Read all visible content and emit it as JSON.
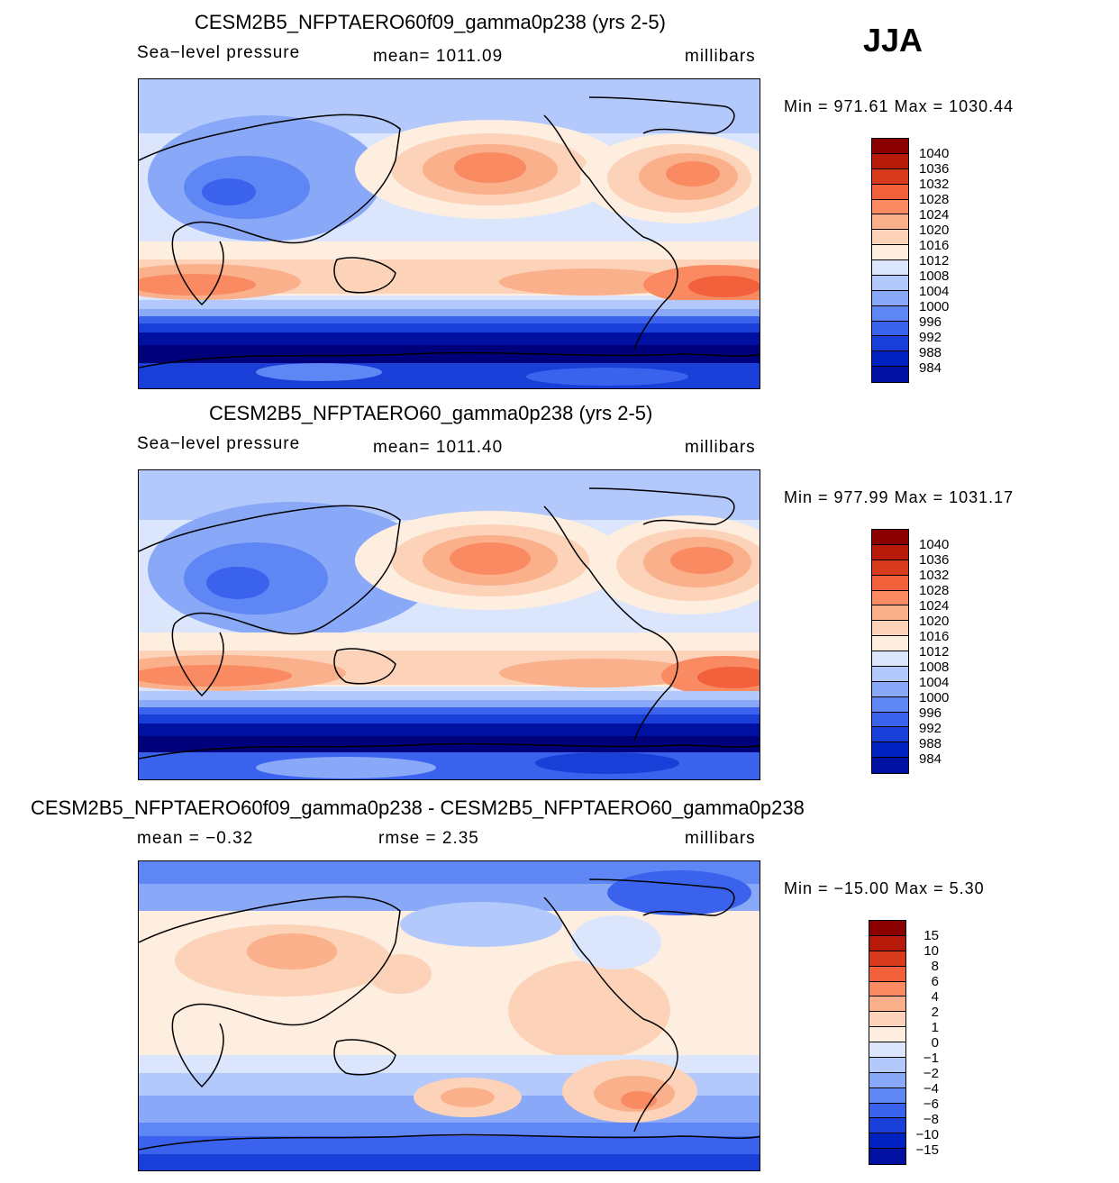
{
  "season": "JJA",
  "colors": {
    "abs": [
      "#00007a",
      "#0010a0",
      "#0022c0",
      "#1a3fd8",
      "#3a62ec",
      "#5e86f4",
      "#89a8f8",
      "#b4c9fb",
      "#dbe6fd",
      "#fdeee0",
      "#fcd3b8",
      "#fbb08c",
      "#f98a62",
      "#f2603c",
      "#d83a1c",
      "#b81a0a",
      "#8a0000"
    ],
    "diff": [
      "#00007a",
      "#0010a0",
      "#0022c0",
      "#1a3fd8",
      "#3a62ec",
      "#5e86f4",
      "#89a8f8",
      "#b4c9fb",
      "#dbe6fd",
      "#fdeee0",
      "#fcd3b8",
      "#fbb08c",
      "#f98a62",
      "#f2603c",
      "#d83a1c",
      "#b81a0a",
      "#8a0000"
    ]
  },
  "panels": [
    {
      "title": "CESM2B5_NFPTAERO60f09_gamma0p238 (yrs 2-5)",
      "variable": "Sea−level  pressure",
      "stat": "mean=  1011.09",
      "units": "millibars",
      "minmax": "Min  =  971.61  Max  =  1030.44",
      "levels": [
        "1040",
        "1036",
        "1032",
        "1028",
        "1024",
        "1020",
        "1016",
        "1012",
        "1008",
        "1004",
        "1000",
        "996",
        "992",
        "988",
        "984"
      ]
    },
    {
      "title": "CESM2B5_NFPTAERO60_gamma0p238 (yrs 2-5)",
      "variable": "Sea−level  pressure",
      "stat": "mean=  1011.40",
      "units": "millibars",
      "minmax": "Min  =  977.99  Max  =  1031.17",
      "levels": [
        "1040",
        "1036",
        "1032",
        "1028",
        "1024",
        "1020",
        "1016",
        "1012",
        "1008",
        "1004",
        "1000",
        "996",
        "992",
        "988",
        "984"
      ]
    },
    {
      "title": "CESM2B5_NFPTAERO60f09_gamma0p238 - CESM2B5_NFPTAERO60_gamma0p238",
      "variable": "mean  =    −0.32",
      "stat": "rmse  =     2.35",
      "units": "millibars",
      "minmax": "Min  =  −15.00  Max  =     5.30",
      "levels": [
        "15",
        "10",
        "8",
        "6",
        "4",
        "2",
        "1",
        "0",
        "−1",
        "−2",
        "−4",
        "−6",
        "−8",
        "−10",
        "−15"
      ]
    }
  ]
}
